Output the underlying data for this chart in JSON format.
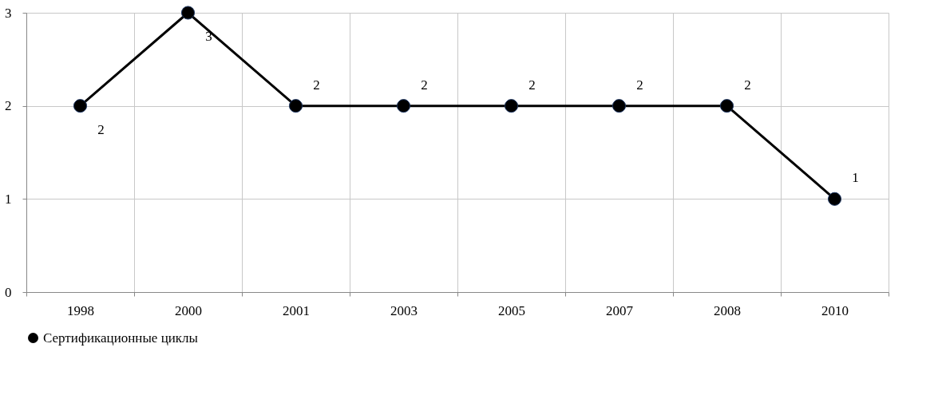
{
  "chart_data": {
    "type": "line",
    "categories": [
      "1998",
      "2000",
      "2001",
      "2003",
      "2005",
      "2007",
      "2008",
      "2010"
    ],
    "series": [
      {
        "name": "Сертификационные циклы",
        "color": "#000000",
        "values": [
          2,
          3,
          2,
          2,
          2,
          2,
          2,
          1
        ]
      }
    ],
    "ylim": [
      0,
      3
    ],
    "yticks": [
      0,
      1,
      2,
      3
    ],
    "grid": true,
    "legend": "bottom",
    "marker": "circle",
    "data_labels": true
  }
}
